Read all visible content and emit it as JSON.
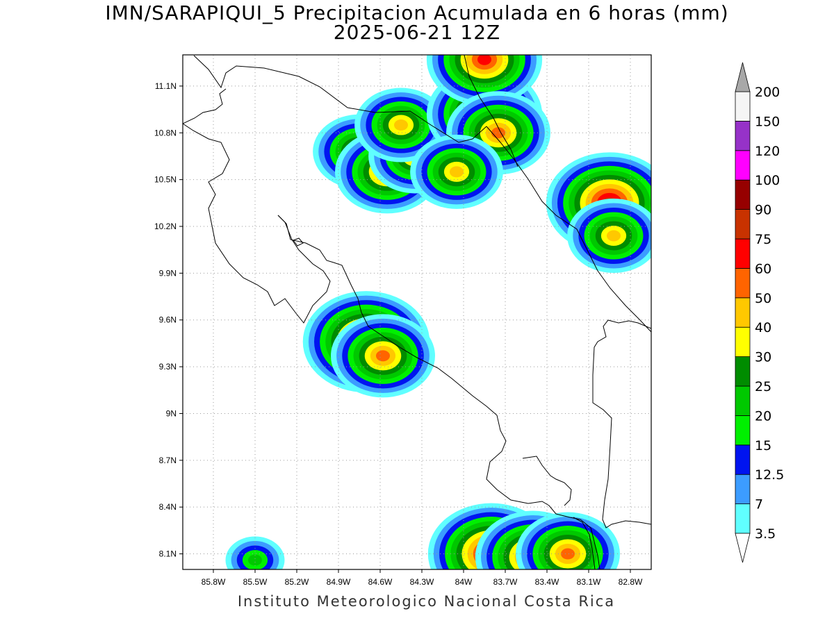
{
  "title": {
    "line1": "IMN/SARAPIQUI_5 Precipitacion Acumulada en 6 horas (mm)",
    "line2": "2025-06-21 12Z"
  },
  "footer": "Instituto Meteorologico Nacional Costa Rica",
  "map": {
    "lon_range": [
      -86.02,
      -82.65
    ],
    "lat_range": [
      8.0,
      11.3
    ],
    "lon_ticks": [
      {
        "value": -85.8,
        "label": "85.8W"
      },
      {
        "value": -85.5,
        "label": "85.5W"
      },
      {
        "value": -85.2,
        "label": "85.2W"
      },
      {
        "value": -84.9,
        "label": "84.9W"
      },
      {
        "value": -84.6,
        "label": "84.6W"
      },
      {
        "value": -84.3,
        "label": "84.3W"
      },
      {
        "value": -84.0,
        "label": "84W"
      },
      {
        "value": -83.7,
        "label": "83.7W"
      },
      {
        "value": -83.4,
        "label": "83.4W"
      },
      {
        "value": -83.1,
        "label": "83.1W"
      },
      {
        "value": -82.8,
        "label": "82.8W"
      }
    ],
    "lat_ticks": [
      {
        "value": 11.1,
        "label": "11.1N"
      },
      {
        "value": 10.8,
        "label": "10.8N"
      },
      {
        "value": 10.5,
        "label": "10.5N"
      },
      {
        "value": 10.2,
        "label": "10.2N"
      },
      {
        "value": 9.9,
        "label": "9.9N"
      },
      {
        "value": 9.6,
        "label": "9.6N"
      },
      {
        "value": 9.3,
        "label": "9.3N"
      },
      {
        "value": 9.0,
        "label": "9N"
      },
      {
        "value": 8.7,
        "label": "8.7N"
      },
      {
        "value": 8.4,
        "label": "8.4N"
      },
      {
        "value": 8.1,
        "label": "8.1N"
      }
    ],
    "grid": "dotted"
  },
  "colorbar": {
    "levels": [
      "3.5",
      "7",
      "12.5",
      "15",
      "20",
      "25",
      "30",
      "40",
      "50",
      "60",
      "75",
      "90",
      "100",
      "120",
      "150",
      "200"
    ],
    "colors": [
      "#60ffff",
      "#3c9cff",
      "#0014f0",
      "#00f000",
      "#00c800",
      "#008c00",
      "#ffff00",
      "#ffc800",
      "#ff6400",
      "#ff0000",
      "#c83200",
      "#960000",
      "#ff00ff",
      "#9632c8",
      "#f5f5f5",
      "#a8a8a8"
    ],
    "under_color": "#ffffff",
    "over_color": "#a8a8a8"
  },
  "precip_cells": [
    {
      "lon": -84.75,
      "lat": 10.68,
      "peak": "40"
    },
    {
      "lon": -84.55,
      "lat": 10.55,
      "peak": "50"
    },
    {
      "lon": -84.35,
      "lat": 10.65,
      "peak": "40"
    },
    {
      "lon": -84.45,
      "lat": 10.85,
      "peak": "40"
    },
    {
      "lon": -83.85,
      "lat": 10.92,
      "peak": "60"
    },
    {
      "lon": -83.85,
      "lat": 11.27,
      "peak": "60"
    },
    {
      "lon": -83.75,
      "lat": 10.8,
      "peak": "50"
    },
    {
      "lon": -84.05,
      "lat": 10.55,
      "peak": "40"
    },
    {
      "lon": -82.95,
      "lat": 10.35,
      "peak": "75"
    },
    {
      "lon": -82.92,
      "lat": 10.14,
      "peak": "40"
    },
    {
      "lon": -84.7,
      "lat": 9.46,
      "peak": "75"
    },
    {
      "lon": -84.58,
      "lat": 9.37,
      "peak": "50"
    },
    {
      "lon": -83.8,
      "lat": 8.1,
      "peak": "75"
    },
    {
      "lon": -83.5,
      "lat": 8.08,
      "peak": "60"
    },
    {
      "lon": -83.25,
      "lat": 8.1,
      "peak": "50"
    },
    {
      "lon": -85.5,
      "lat": 8.06,
      "peak": "20"
    }
  ]
}
